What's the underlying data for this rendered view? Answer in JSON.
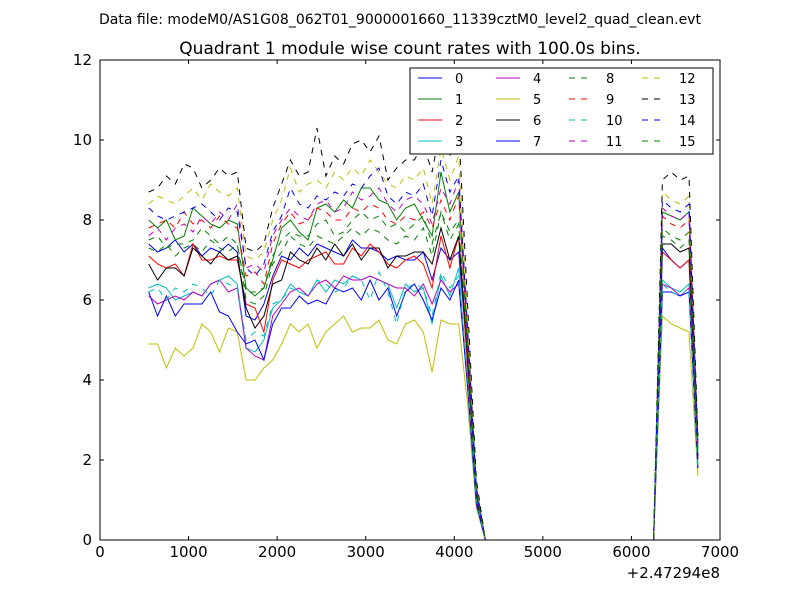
{
  "figure": {
    "suptitle": "Data file: modeM0/AS1G08_062T01_9000001660_11339cztM0_level2_quad_clean.evt"
  },
  "chart_data": {
    "type": "line",
    "title": "Quadrant 1 module wise count rates with 100.0s bins.",
    "xlabel": "",
    "ylabel": "",
    "x_offset_label": "+2.47294e8",
    "xlim": [
      0,
      7000
    ],
    "ylim": [
      0,
      12
    ],
    "xticks": [
      "0",
      "1000",
      "2000",
      "3000",
      "4000",
      "5000",
      "6000",
      "7000"
    ],
    "yticks": [
      "0",
      "2",
      "4",
      "6",
      "8",
      "10",
      "12"
    ],
    "grid": false,
    "legend_position": "top-right",
    "legend_columns": 4,
    "x": [
      550,
      650,
      750,
      850,
      950,
      1050,
      1150,
      1250,
      1350,
      1450,
      1550,
      1650,
      1750,
      1850,
      1950,
      2050,
      2150,
      2250,
      2350,
      2450,
      2550,
      2650,
      2750,
      2850,
      2950,
      3050,
      3150,
      3250,
      3350,
      3450,
      3550,
      3650,
      3750,
      3850,
      3950,
      4050,
      4150,
      4250,
      4350,
      4450,
      4550,
      4650,
      4750,
      4850,
      4950,
      5050,
      5150,
      5250,
      5350,
      5450,
      5550,
      5650,
      5750,
      5850,
      5950,
      6050,
      6150,
      6250,
      6350,
      6450,
      6550,
      6650,
      6750
    ],
    "series": [
      {
        "name": "0",
        "color": "#0000ff",
        "dash": "solid",
        "values": [
          7.4,
          7.2,
          7.3,
          7.5,
          7.2,
          7.4,
          7.1,
          7.3,
          7.2,
          7.4,
          7.2,
          5.6,
          5.5,
          5.9,
          6.6,
          7.1,
          7.0,
          7.3,
          7.1,
          7.4,
          7.3,
          7.2,
          7.1,
          7.5,
          7.3,
          7.3,
          7.2,
          7.0,
          7.1,
          7.0,
          7.0,
          7.2,
          6.5,
          7.3,
          7.0,
          7.2,
          4.5,
          1.2,
          0,
          0,
          0,
          0,
          0,
          0,
          0,
          0,
          0,
          0,
          0,
          0,
          0,
          0,
          0,
          0,
          0,
          0,
          0,
          0,
          7.3,
          7.0,
          6.8,
          7.0,
          2.0
        ]
      },
      {
        "name": "1",
        "color": "#008000",
        "dash": "solid",
        "values": [
          8.0,
          7.8,
          8.0,
          7.5,
          7.6,
          8.3,
          8.1,
          7.9,
          7.8,
          8.0,
          7.9,
          6.3,
          6.1,
          6.3,
          7.0,
          7.8,
          8.0,
          7.7,
          7.5,
          8.3,
          8.4,
          8.2,
          8.5,
          8.3,
          8.8,
          8.8,
          8.5,
          8.4,
          8.0,
          8.3,
          8.4,
          8.0,
          7.6,
          9.2,
          8.2,
          8.7,
          5.0,
          1.3,
          0,
          0,
          0,
          0,
          0,
          0,
          0,
          0,
          0,
          0,
          0,
          0,
          0,
          0,
          0,
          0,
          0,
          0,
          0,
          0,
          8.2,
          8.1,
          8.0,
          8.2,
          2.4
        ]
      },
      {
        "name": "2",
        "color": "#ff0000",
        "dash": "solid",
        "values": [
          7.1,
          6.9,
          6.8,
          6.9,
          6.6,
          7.4,
          7.0,
          7.0,
          7.1,
          7.0,
          7.0,
          5.9,
          5.8,
          5.2,
          6.5,
          7.0,
          6.9,
          6.8,
          7.0,
          7.1,
          7.2,
          6.9,
          6.9,
          7.3,
          7.1,
          7.4,
          7.2,
          6.9,
          6.8,
          7.0,
          7.1,
          6.9,
          6.3,
          7.6,
          6.8,
          7.6,
          4.3,
          1.1,
          0,
          0,
          0,
          0,
          0,
          0,
          0,
          0,
          0,
          0,
          0,
          0,
          0,
          0,
          0,
          0,
          0,
          0,
          0,
          0,
          7.2,
          7.0,
          6.8,
          7.0,
          2.0
        ]
      },
      {
        "name": "3",
        "color": "#00bfbf",
        "dash": "solid",
        "values": [
          6.3,
          6.4,
          6.3,
          6.0,
          6.1,
          6.2,
          6.1,
          6.4,
          6.5,
          6.6,
          6.4,
          4.8,
          4.7,
          5.0,
          5.8,
          6.0,
          6.4,
          6.2,
          6.1,
          6.5,
          6.2,
          6.5,
          6.4,
          6.6,
          6.5,
          6.6,
          6.5,
          6.4,
          5.8,
          6.4,
          6.2,
          6.3,
          5.4,
          6.6,
          6.1,
          6.8,
          3.9,
          1.0,
          0,
          0,
          0,
          0,
          0,
          0,
          0,
          0,
          0,
          0,
          0,
          0,
          0,
          0,
          0,
          0,
          0,
          0,
          0,
          0,
          6.5,
          6.3,
          6.2,
          6.4,
          1.8
        ]
      },
      {
        "name": "4",
        "color": "#bf00bf",
        "dash": "solid",
        "values": [
          6.1,
          5.9,
          6.0,
          6.1,
          6.0,
          6.2,
          6.1,
          6.4,
          6.5,
          6.2,
          6.3,
          4.8,
          4.6,
          4.5,
          5.6,
          5.9,
          6.2,
          6.3,
          6.1,
          6.4,
          6.5,
          6.3,
          6.6,
          6.5,
          6.5,
          6.6,
          6.5,
          6.4,
          6.3,
          6.3,
          6.1,
          6.4,
          5.9,
          6.5,
          6.2,
          6.4,
          3.9,
          1.0,
          0,
          0,
          0,
          0,
          0,
          0,
          0,
          0,
          0,
          0,
          0,
          0,
          0,
          0,
          0,
          0,
          0,
          0,
          0,
          0,
          6.4,
          6.3,
          6.1,
          6.3,
          1.8
        ]
      },
      {
        "name": "5",
        "color": "#bfbf00",
        "dash": "solid",
        "values": [
          4.9,
          4.9,
          4.3,
          4.8,
          4.6,
          4.8,
          5.4,
          5.2,
          4.7,
          5.3,
          5.2,
          4.0,
          4.0,
          4.3,
          4.5,
          4.9,
          5.4,
          5.2,
          5.4,
          4.8,
          5.2,
          5.4,
          5.6,
          5.2,
          5.3,
          5.3,
          5.5,
          5.0,
          4.9,
          5.4,
          5.5,
          5.2,
          4.2,
          5.5,
          5.4,
          5.4,
          3.4,
          0.8,
          0,
          0,
          0,
          0,
          0,
          0,
          0,
          0,
          0,
          0,
          0,
          0,
          0,
          0,
          0,
          0,
          0,
          0,
          0,
          0,
          5.6,
          5.4,
          5.3,
          5.2,
          1.6
        ]
      },
      {
        "name": "6",
        "color": "#000000",
        "dash": "solid",
        "values": [
          6.9,
          6.5,
          6.8,
          6.8,
          6.6,
          7.3,
          7.1,
          6.9,
          7.2,
          7.0,
          7.1,
          5.8,
          5.3,
          5.6,
          6.4,
          6.5,
          7.2,
          7.0,
          6.9,
          7.3,
          7.0,
          7.4,
          7.1,
          7.4,
          7.0,
          7.3,
          7.3,
          6.8,
          7.1,
          7.1,
          7.2,
          7.2,
          6.9,
          7.8,
          7.0,
          7.6,
          4.6,
          1.1,
          0,
          0,
          0,
          0,
          0,
          0,
          0,
          0,
          0,
          0,
          0,
          0,
          0,
          0,
          0,
          0,
          0,
          0,
          0,
          0,
          7.4,
          7.4,
          7.2,
          7.3,
          2.1
        ]
      },
      {
        "name": "7",
        "color": "#0000ff",
        "dash": "solid",
        "values": [
          6.2,
          5.6,
          6.1,
          5.6,
          5.9,
          5.9,
          5.9,
          6.2,
          5.7,
          5.6,
          5.2,
          4.9,
          5.0,
          4.5,
          5.4,
          5.8,
          5.8,
          6.1,
          5.9,
          6.0,
          5.9,
          6.3,
          6.2,
          6.3,
          6.0,
          6.5,
          6.0,
          6.3,
          5.6,
          6.2,
          6.4,
          6.0,
          5.5,
          6.3,
          6.0,
          6.5,
          3.8,
          0.9,
          0,
          0,
          0,
          0,
          0,
          0,
          0,
          0,
          0,
          0,
          0,
          0,
          0,
          0,
          0,
          0,
          0,
          0,
          0,
          0,
          6.2,
          6.2,
          6.1,
          6.2,
          1.8
        ]
      },
      {
        "name": "8",
        "color": "#008000",
        "dash": "dashed",
        "values": [
          7.5,
          7.6,
          7.3,
          7.4,
          7.4,
          7.5,
          7.8,
          7.6,
          7.4,
          7.6,
          7.4,
          6.2,
          6.2,
          6.3,
          7.1,
          7.5,
          7.7,
          7.6,
          7.6,
          7.9,
          8.0,
          7.6,
          7.7,
          8.0,
          8.2,
          8.0,
          8.1,
          7.8,
          7.9,
          7.7,
          7.9,
          8.1,
          7.4,
          8.2,
          7.7,
          8.0,
          4.8,
          1.2,
          0,
          0,
          0,
          0,
          0,
          0,
          0,
          0,
          0,
          0,
          0,
          0,
          0,
          0,
          0,
          0,
          0,
          0,
          0,
          0,
          7.8,
          7.6,
          7.5,
          7.7,
          2.2
        ]
      },
      {
        "name": "9",
        "color": "#ff0000",
        "dash": "dashed",
        "values": [
          7.8,
          7.9,
          8.0,
          7.8,
          8.2,
          7.9,
          8.0,
          7.8,
          8.1,
          7.9,
          7.8,
          6.6,
          6.7,
          6.4,
          7.4,
          7.9,
          8.2,
          7.9,
          8.0,
          8.3,
          8.2,
          8.0,
          8.0,
          8.3,
          8.2,
          8.4,
          8.3,
          8.0,
          7.9,
          8.1,
          8.0,
          8.2,
          7.8,
          8.5,
          8.0,
          8.6,
          5.0,
          1.2,
          0,
          0,
          0,
          0,
          0,
          0,
          0,
          0,
          0,
          0,
          0,
          0,
          0,
          0,
          0,
          0,
          0,
          0,
          0,
          0,
          8.1,
          7.9,
          7.8,
          8.0,
          2.3
        ]
      },
      {
        "name": "10",
        "color": "#00bfbf",
        "dash": "dashed",
        "values": [
          6.2,
          6.3,
          6.0,
          6.3,
          6.2,
          6.4,
          6.3,
          6.1,
          6.5,
          6.4,
          6.3,
          5.0,
          5.2,
          5.1,
          5.9,
          6.0,
          6.3,
          6.2,
          6.1,
          6.5,
          6.4,
          6.2,
          6.3,
          6.6,
          6.5,
          6.0,
          6.7,
          6.2,
          5.4,
          6.3,
          6.4,
          6.3,
          5.6,
          6.7,
          6.3,
          6.6,
          4.0,
          1.0,
          0,
          0,
          0,
          0,
          0,
          0,
          0,
          0,
          0,
          0,
          0,
          0,
          0,
          0,
          0,
          0,
          0,
          0,
          0,
          0,
          6.4,
          6.2,
          6.1,
          6.3,
          1.8
        ]
      },
      {
        "name": "11",
        "color": "#bf00bf",
        "dash": "dashed",
        "values": [
          7.6,
          7.8,
          7.5,
          7.8,
          7.9,
          7.7,
          8.1,
          7.9,
          8.2,
          8.0,
          8.4,
          6.8,
          6.9,
          6.7,
          7.6,
          8.0,
          8.3,
          8.1,
          8.0,
          8.4,
          8.5,
          8.2,
          8.3,
          8.7,
          8.5,
          8.6,
          8.8,
          8.4,
          8.2,
          8.5,
          8.6,
          8.4,
          7.9,
          8.8,
          8.4,
          9.0,
          5.2,
          1.3,
          0,
          0,
          0,
          0,
          0,
          0,
          0,
          0,
          0,
          0,
          0,
          0,
          0,
          0,
          0,
          0,
          0,
          0,
          0,
          0,
          8.3,
          8.1,
          8.0,
          8.2,
          2.4
        ]
      },
      {
        "name": "12",
        "color": "#bfbf00",
        "dash": "dashed",
        "values": [
          8.4,
          8.6,
          8.5,
          8.4,
          8.6,
          8.8,
          8.5,
          8.9,
          8.7,
          8.6,
          8.8,
          7.1,
          7.0,
          7.2,
          8.0,
          8.5,
          9.3,
          8.7,
          8.9,
          9.0,
          8.8,
          9.2,
          9.0,
          9.3,
          9.1,
          9.5,
          9.2,
          8.9,
          8.8,
          9.1,
          9.0,
          9.3,
          8.4,
          9.8,
          9.0,
          9.6,
          5.5,
          1.4,
          0,
          0,
          0,
          0,
          0,
          0,
          0,
          0,
          0,
          0,
          0,
          0,
          0,
          0,
          0,
          0,
          0,
          0,
          0,
          0,
          8.7,
          8.5,
          8.4,
          8.6,
          2.5
        ]
      },
      {
        "name": "13",
        "color": "#000000",
        "dash": "dashed",
        "values": [
          8.7,
          8.8,
          9.1,
          8.9,
          9.4,
          9.3,
          8.8,
          9.0,
          9.3,
          9.1,
          9.2,
          7.3,
          7.2,
          7.4,
          8.3,
          8.9,
          9.5,
          9.1,
          9.2,
          10.3,
          9.1,
          9.6,
          9.4,
          9.9,
          10.0,
          9.7,
          10.1,
          9.0,
          9.3,
          9.5,
          9.5,
          9.9,
          9.2,
          10.4,
          9.6,
          10.3,
          5.9,
          1.5,
          0,
          0,
          0,
          0,
          0,
          0,
          0,
          0,
          0,
          0,
          0,
          0,
          0,
          0,
          0,
          0,
          0,
          0,
          0,
          0,
          9.0,
          9.2,
          9.0,
          9.1,
          2.6
        ]
      },
      {
        "name": "14",
        "color": "#0000ff",
        "dash": "dashed",
        "values": [
          8.3,
          8.1,
          8.0,
          8.1,
          8.2,
          8.3,
          8.4,
          8.2,
          8.0,
          8.3,
          8.2,
          6.8,
          6.6,
          6.9,
          7.7,
          8.1,
          8.8,
          8.4,
          8.3,
          8.6,
          8.5,
          8.7,
          8.6,
          8.9,
          8.8,
          9.1,
          9.3,
          8.6,
          8.4,
          8.7,
          8.6,
          8.9,
          8.1,
          9.5,
          8.7,
          9.1,
          5.3,
          1.3,
          0,
          0,
          0,
          0,
          0,
          0,
          0,
          0,
          0,
          0,
          0,
          0,
          0,
          0,
          0,
          0,
          0,
          0,
          0,
          0,
          8.5,
          8.3,
          8.2,
          8.4,
          2.5
        ]
      },
      {
        "name": "15",
        "color": "#008000",
        "dash": "dashed",
        "values": [
          7.3,
          7.2,
          7.4,
          7.1,
          7.3,
          7.4,
          7.2,
          7.5,
          7.3,
          7.2,
          7.4,
          6.0,
          5.9,
          6.1,
          6.9,
          7.2,
          7.6,
          7.4,
          7.3,
          7.6,
          7.5,
          7.4,
          7.6,
          7.8,
          7.6,
          7.8,
          7.7,
          7.5,
          7.4,
          7.6,
          7.5,
          7.8,
          7.1,
          8.2,
          7.5,
          7.9,
          4.7,
          1.2,
          0,
          0,
          0,
          0,
          0,
          0,
          0,
          0,
          0,
          0,
          0,
          0,
          0,
          0,
          0,
          0,
          0,
          0,
          0,
          0,
          7.6,
          7.5,
          7.3,
          7.5,
          2.2
        ]
      }
    ]
  }
}
